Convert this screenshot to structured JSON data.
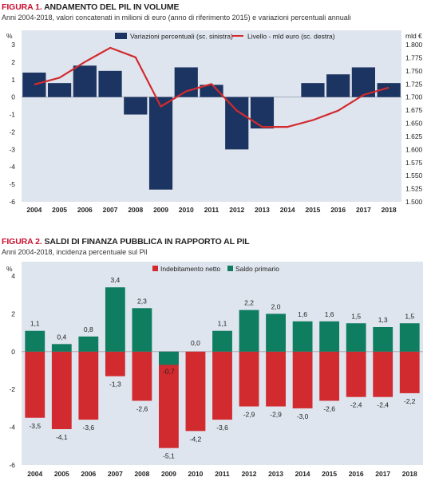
{
  "figure1": {
    "title_prefix": "FIGURA 1.",
    "title_rest": " ANDAMENTO DEL PIL IN VOLUME",
    "subtitle": "Anni 2004-2018, valori concatenati in milioni di euro (anno di riferimento 2015) e variazioni percentuali annuali"
  },
  "figure2": {
    "title_prefix": "FIGURA 2.",
    "title_rest": " SALDI DI FINANZA PUBBLICA IN RAPPORTO AL PIL",
    "subtitle": "Anni 2004-2018, incidenza percentuale sul Pil"
  },
  "chart_data": [
    {
      "type": "bar",
      "title": "ANDAMENTO DEL PIL IN VOLUME",
      "categories": [
        "2004",
        "2005",
        "2006",
        "2007",
        "2008",
        "2009",
        "2010",
        "2011",
        "2012",
        "2013",
        "2014",
        "2015",
        "2016",
        "2017",
        "2018"
      ],
      "left_axis_unit": "%",
      "right_axis_unit": "mld €",
      "ylim_left": [
        -6,
        3
      ],
      "yticks_left": [
        "3",
        "2",
        "1",
        "0",
        "-1",
        "-2",
        "-3",
        "-4",
        "-5",
        "-6"
      ],
      "ylim_right": [
        1500,
        1800
      ],
      "yticks_right": [
        "1.800",
        "1.775",
        "1.750",
        "1.725",
        "1.700",
        "1.675",
        "1.650",
        "1.625",
        "1.600",
        "1.575",
        "1.550",
        "1.525",
        "1.500"
      ],
      "legend_position": "top",
      "series": [
        {
          "name": "Variazioni percentuali (sc. sinistra)",
          "type": "bar",
          "axis": "left",
          "color": "#1c3461",
          "values": [
            1.4,
            0.8,
            1.8,
            1.5,
            -1.0,
            -5.3,
            1.7,
            0.7,
            -3.0,
            -1.8,
            0.0,
            0.8,
            1.3,
            1.7,
            0.8
          ]
        },
        {
          "name": "Livello - mld euro (sc. destra)",
          "type": "line",
          "axis": "right",
          "color": "#d12b2f",
          "values": [
            1724,
            1737,
            1767,
            1794,
            1776,
            1682,
            1711,
            1725,
            1674,
            1643,
            1643,
            1656,
            1674,
            1704,
            1718
          ]
        }
      ]
    },
    {
      "type": "bar",
      "title": "SALDI DI FINANZA PUBBLICA IN RAPPORTO AL PIL",
      "categories": [
        "2004",
        "2005",
        "2006",
        "2007",
        "2008",
        "2009",
        "2010",
        "2011",
        "2012",
        "2013",
        "2014",
        "2015",
        "2016",
        "2017",
        "2018"
      ],
      "axis_unit": "%",
      "ylim": [
        -6,
        4
      ],
      "yticks": [
        "4",
        "2",
        "0",
        "-2",
        "-4",
        "-6"
      ],
      "legend_position": "top",
      "series": [
        {
          "name": "Indebitamento netto",
          "color": "#d12b2f",
          "values": [
            -3.5,
            -4.1,
            -3.6,
            -1.3,
            -2.6,
            -5.1,
            -4.2,
            -3.6,
            -2.9,
            -2.9,
            -3.0,
            -2.6,
            -2.4,
            -2.4,
            -2.2
          ],
          "labels": [
            "-3,5",
            "-4,1",
            "-3,6",
            "-1,3",
            "-2,6",
            "-5,1",
            "-4,2",
            "-3,6",
            "-2,9",
            "-2,9",
            "-3,0",
            "-2,6",
            "-2,4",
            "-2,4",
            "-2,2"
          ]
        },
        {
          "name": "Saldo primario",
          "color": "#0f7d5f",
          "values": [
            1.1,
            0.4,
            0.8,
            3.4,
            2.3,
            -0.7,
            0.0,
            1.1,
            2.2,
            2.0,
            1.6,
            1.6,
            1.5,
            1.3,
            1.5
          ],
          "labels": [
            "1,1",
            "0,4",
            "0,8",
            "3,4",
            "2,3",
            "-0,7",
            "0,0",
            "1,1",
            "2,2",
            "2,0",
            "1,6",
            "1,6",
            "1,5",
            "1,3",
            "1,5"
          ]
        }
      ]
    }
  ]
}
